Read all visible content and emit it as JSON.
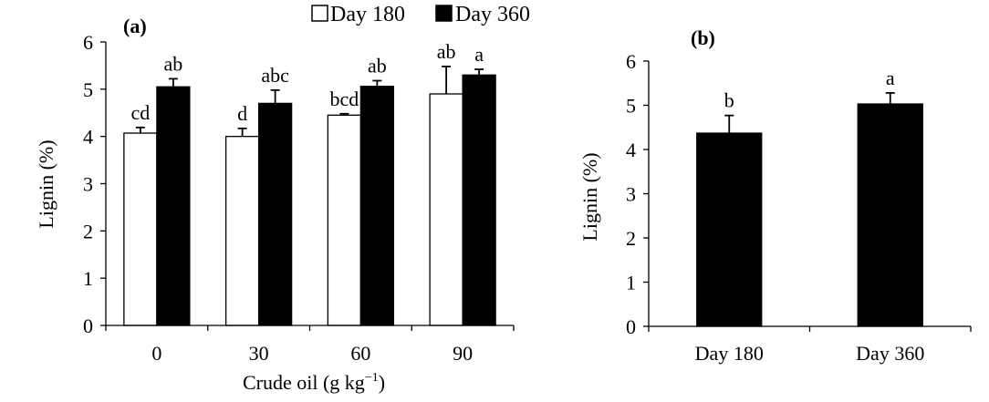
{
  "chart_data": [
    {
      "type": "bar",
      "panel_label": "(a)",
      "title": "",
      "xlabel": "Crude oil (g kg",
      "xlabel_unit_superscript": "−1",
      "xlabel_close": ")",
      "ylabel": "Lignin (%)",
      "ylim": [
        0,
        6
      ],
      "yticks": [
        "0",
        "1",
        "2",
        "3",
        "4",
        "5",
        "6"
      ],
      "categories": [
        "0",
        "30",
        "60",
        "90"
      ],
      "legend_position": "top",
      "series": [
        {
          "name": "Day 180",
          "fill": "#ffffff",
          "values": [
            4.07,
            4.0,
            4.45,
            4.9
          ],
          "errors": [
            0.12,
            0.17,
            0.03,
            0.58
          ],
          "letters": [
            "cd",
            "d",
            "bcd",
            "ab"
          ]
        },
        {
          "name": "Day 360",
          "fill": "#000000",
          "values": [
            5.05,
            4.7,
            5.06,
            5.3
          ],
          "errors": [
            0.17,
            0.28,
            0.12,
            0.12
          ],
          "letters": [
            "ab",
            "abc",
            "ab",
            "a"
          ]
        }
      ]
    },
    {
      "type": "bar",
      "panel_label": "(b)",
      "title": "",
      "xlabel": "",
      "ylabel": "Lignin (%)",
      "ylim": [
        0,
        6
      ],
      "yticks": [
        "0",
        "1",
        "2",
        "3",
        "4",
        "5",
        "6"
      ],
      "categories": [
        "Day 180",
        "Day 360"
      ],
      "series": [
        {
          "name": "Lignin",
          "fill": "#000000",
          "values": [
            4.37,
            5.03
          ],
          "errors": [
            0.4,
            0.25
          ],
          "letters": [
            "b",
            "a"
          ]
        }
      ]
    }
  ]
}
